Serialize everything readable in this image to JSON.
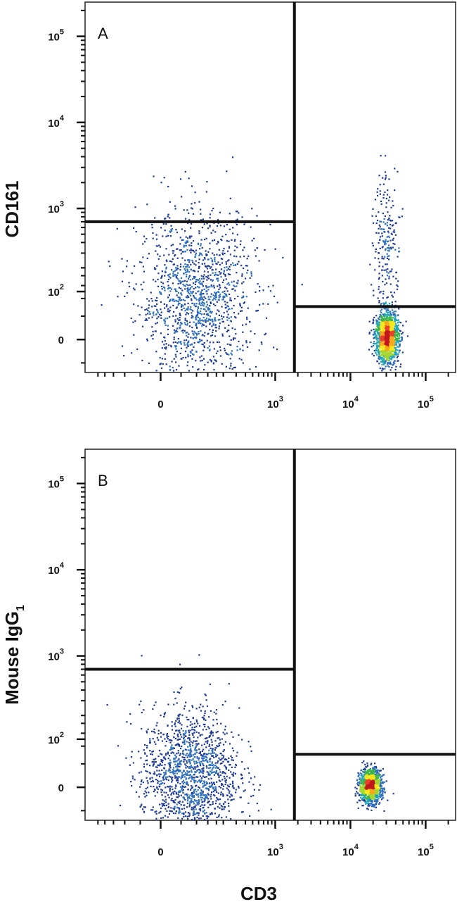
{
  "chart_data": [
    {
      "type": "scatter",
      "panel_label": "A",
      "ylabel": "CD161",
      "xlabel": "",
      "x_scale": "biexponential",
      "y_scale": "biexponential",
      "xlim": [
        -300,
        250000
      ],
      "ylim": [
        -60,
        250000
      ],
      "x_ticks": [
        {
          "value": 0,
          "base": "0",
          "exp": ""
        },
        {
          "value": 1000,
          "base": "10",
          "exp": "3"
        },
        {
          "value": 10000,
          "base": "10",
          "exp": "4"
        },
        {
          "value": 100000,
          "base": "10",
          "exp": "5"
        }
      ],
      "y_ticks": [
        {
          "value": 0,
          "base": "0",
          "exp": ""
        },
        {
          "value": 100,
          "base": "10",
          "exp": "2"
        },
        {
          "value": 1000,
          "base": "10",
          "exp": "3"
        },
        {
          "value": 10000,
          "base": "10",
          "exp": "4"
        },
        {
          "value": 100000,
          "base": "10",
          "exp": "5"
        }
      ],
      "quadrant_gates": {
        "x": 1800,
        "y_left": 700,
        "y_right": 60
      },
      "populations": [
        {
          "x_center": 80,
          "y_center": 80,
          "x_spread": 0.9,
          "y_spread": 1.15,
          "density": "high",
          "count": 1400
        },
        {
          "x_center": 30000,
          "y_center": 5,
          "x_spread": 0.32,
          "y_spread": 0.35,
          "density": "very-high",
          "count": 1400
        },
        {
          "x_center": 30000,
          "y_center": 400,
          "x_spread": 0.35,
          "y_spread": 1.1,
          "density": "low",
          "count": 220
        }
      ]
    },
    {
      "type": "scatter",
      "panel_label": "B",
      "ylabel": "Mouse IgG",
      "ylabel_sub": "1",
      "xlabel": "CD3",
      "x_scale": "biexponential",
      "y_scale": "biexponential",
      "xlim": [
        -300,
        250000
      ],
      "ylim": [
        -60,
        250000
      ],
      "x_ticks": [
        {
          "value": 0,
          "base": "0",
          "exp": ""
        },
        {
          "value": 1000,
          "base": "10",
          "exp": "3"
        },
        {
          "value": 10000,
          "base": "10",
          "exp": "4"
        },
        {
          "value": 100000,
          "base": "10",
          "exp": "5"
        }
      ],
      "y_ticks": [
        {
          "value": 0,
          "base": "0",
          "exp": ""
        },
        {
          "value": 100,
          "base": "10",
          "exp": "2"
        },
        {
          "value": 1000,
          "base": "10",
          "exp": "3"
        },
        {
          "value": 10000,
          "base": "10",
          "exp": "4"
        },
        {
          "value": 100000,
          "base": "10",
          "exp": "5"
        }
      ],
      "quadrant_gates": {
        "x": 1800,
        "y_left": 700,
        "y_right": 60
      },
      "populations": [
        {
          "x_center": 60,
          "y_center": 20,
          "x_spread": 0.75,
          "y_spread": 0.9,
          "density": "high",
          "count": 1500
        },
        {
          "x_center": 18000,
          "y_center": 3,
          "x_spread": 0.3,
          "y_spread": 0.22,
          "density": "very-high",
          "count": 1300
        }
      ]
    }
  ]
}
